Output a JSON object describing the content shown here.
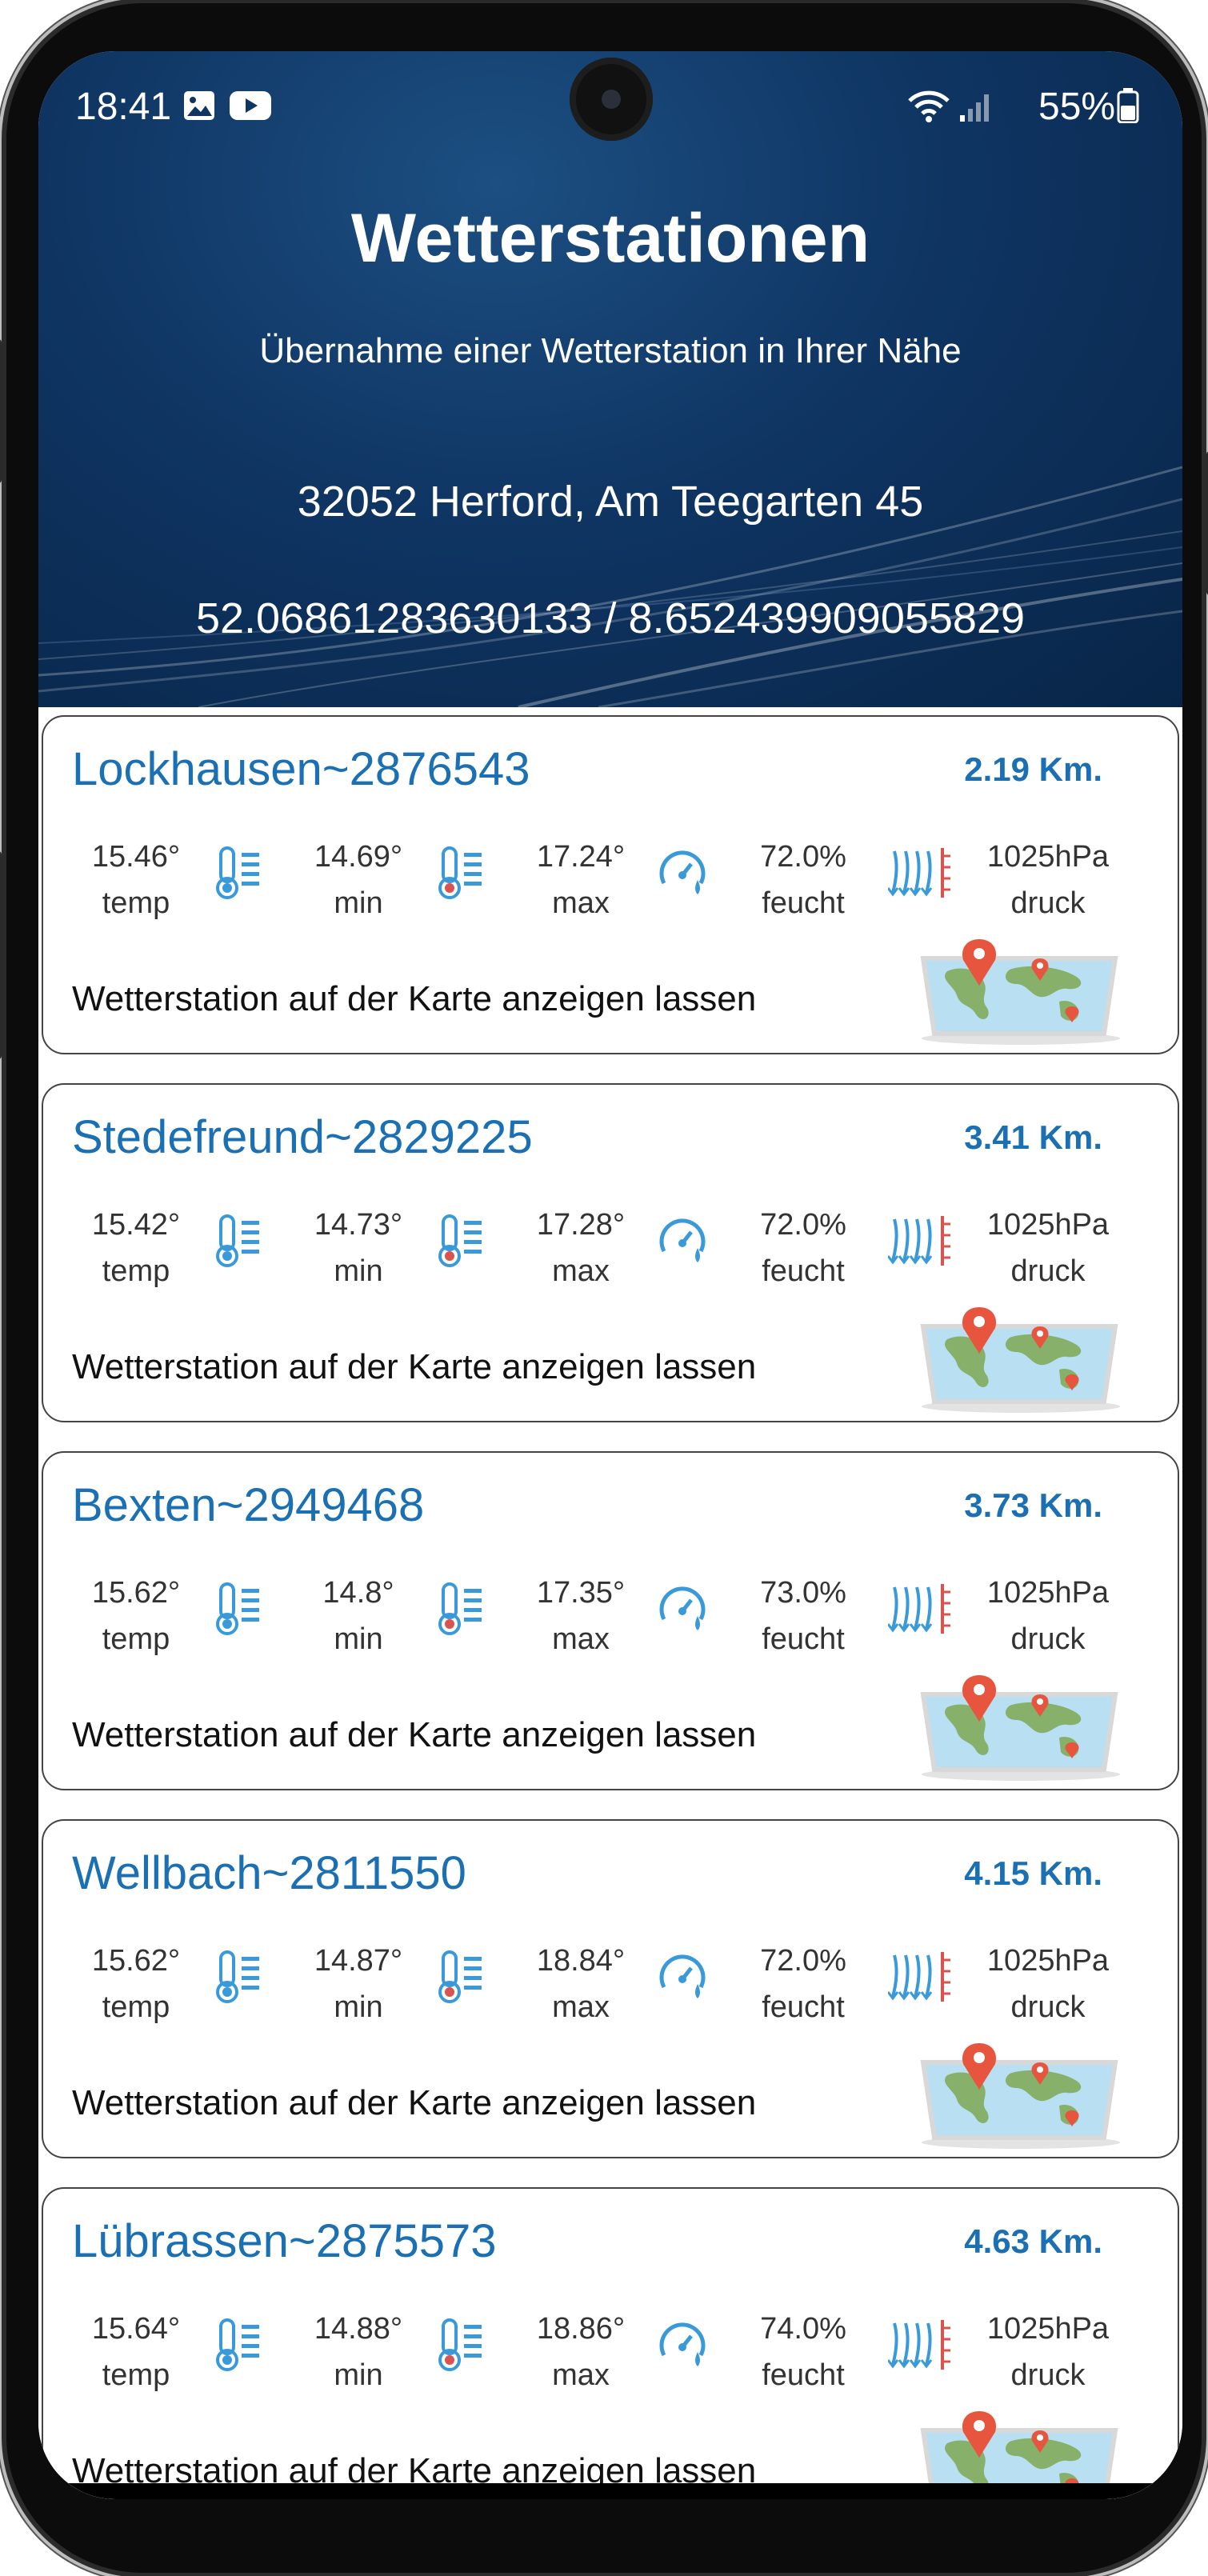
{
  "status_bar": {
    "time": "18:41",
    "battery": "55%"
  },
  "header": {
    "title": "Wetterstationen",
    "subtitle": "Übernahme einer Wetterstation in Ihrer Nähe",
    "address": "32052 Herford, Am Teegarten 45",
    "coordinates": "52.06861283630133 / 8.652439909055829"
  },
  "link_text": "Wetterstation auf der Karte anzeigen lassen",
  "labels": {
    "temp": "temp",
    "min": "min",
    "max": "max",
    "humidity": "feucht",
    "pressure": "druck"
  },
  "stations": [
    {
      "name": "Lockhausen~2876543",
      "distance": "2.19 Km.",
      "temp": "15.46°",
      "min": "14.69°",
      "max": "17.24°",
      "humidity": "72.0%",
      "pressure": "1025hPa"
    },
    {
      "name": "Stedefreund~2829225",
      "distance": "3.41 Km.",
      "temp": "15.42°",
      "min": "14.73°",
      "max": "17.28°",
      "humidity": "72.0%",
      "pressure": "1025hPa"
    },
    {
      "name": "Bexten~2949468",
      "distance": "3.73 Km.",
      "temp": "15.62°",
      "min": "14.8°",
      "max": "17.35°",
      "humidity": "73.0%",
      "pressure": "1025hPa"
    },
    {
      "name": "Wellbach~2811550",
      "distance": "4.15 Km.",
      "temp": "15.62°",
      "min": "14.87°",
      "max": "18.84°",
      "humidity": "72.0%",
      "pressure": "1025hPa"
    },
    {
      "name": "Lübrassen~2875573",
      "distance": "4.63 Km.",
      "temp": "15.64°",
      "min": "14.88°",
      "max": "18.86°",
      "humidity": "74.0%",
      "pressure": "1025hPa"
    }
  ],
  "colors": {
    "accent": "#1b6fb3",
    "header_dark": "#082547",
    "icon_blue": "#3a9ad9"
  }
}
